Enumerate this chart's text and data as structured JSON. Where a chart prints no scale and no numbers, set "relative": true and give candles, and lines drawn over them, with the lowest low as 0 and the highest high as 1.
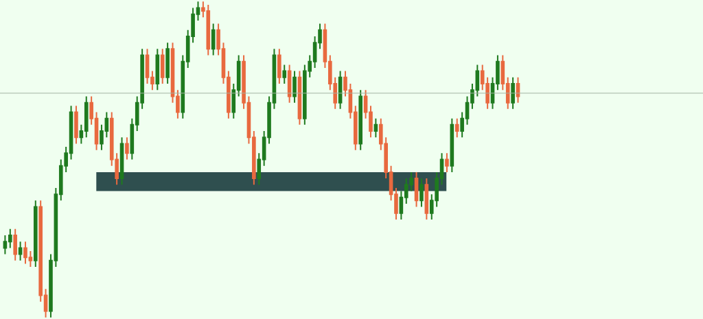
{
  "chart_data": {
    "type": "candlestick",
    "relative": true,
    "legend": false,
    "categories": [
      null,
      null,
      null,
      null,
      null,
      null,
      null,
      null,
      null,
      null,
      null,
      null,
      null,
      null,
      null,
      null,
      null,
      null,
      null,
      null,
      null,
      null,
      null,
      null,
      null,
      null,
      null,
      null,
      null,
      null,
      null,
      null,
      null,
      null,
      null,
      null,
      null,
      null,
      null,
      null,
      null,
      null,
      null,
      null,
      null,
      null,
      null,
      null,
      null,
      null,
      null,
      null,
      null,
      null,
      null,
      null,
      null,
      null,
      null,
      null,
      null,
      null,
      null,
      null,
      null,
      null,
      null,
      null,
      null,
      null,
      null,
      null,
      null,
      null,
      null,
      null,
      null,
      null,
      null,
      null,
      null,
      null,
      null,
      null,
      null,
      null,
      null,
      null,
      null,
      null,
      null,
      null,
      null,
      null,
      null,
      null,
      null,
      null,
      null,
      null,
      null,
      null
    ],
    "ohlc": [
      [
        0.22,
        0.26,
        0.2,
        0.24
      ],
      [
        0.24,
        0.28,
        0.22,
        0.26
      ],
      [
        0.26,
        0.28,
        0.18,
        0.2
      ],
      [
        0.2,
        0.24,
        0.18,
        0.22
      ],
      [
        0.22,
        0.24,
        0.17,
        0.19
      ],
      [
        0.19,
        0.21,
        0.16,
        0.18
      ],
      [
        0.18,
        0.37,
        0.16,
        0.35
      ],
      [
        0.35,
        0.37,
        0.05,
        0.07
      ],
      [
        0.07,
        0.09,
        0,
        0.02
      ],
      [
        0.02,
        0.2,
        0,
        0.18
      ],
      [
        0.18,
        0.41,
        0.16,
        0.39
      ],
      [
        0.39,
        0.5,
        0.37,
        0.48
      ],
      [
        0.48,
        0.54,
        0.46,
        0.52
      ],
      [
        0.52,
        0.67,
        0.5,
        0.65
      ],
      [
        0.65,
        0.67,
        0.55,
        0.57
      ],
      [
        0.57,
        0.61,
        0.55,
        0.59
      ],
      [
        0.59,
        0.7,
        0.57,
        0.68
      ],
      [
        0.68,
        0.7,
        0.61,
        0.63
      ],
      [
        0.63,
        0.65,
        0.53,
        0.55
      ],
      [
        0.55,
        0.61,
        0.53,
        0.59
      ],
      [
        0.59,
        0.65,
        0.57,
        0.63
      ],
      [
        0.63,
        0.65,
        0.48,
        0.5
      ],
      [
        0.5,
        0.52,
        0.42,
        0.44
      ],
      [
        0.44,
        0.57,
        0.42,
        0.55
      ],
      [
        0.55,
        0.57,
        0.5,
        0.52
      ],
      [
        0.52,
        0.63,
        0.5,
        0.61
      ],
      [
        0.61,
        0.7,
        0.59,
        0.68
      ],
      [
        0.68,
        0.85,
        0.66,
        0.83
      ],
      [
        0.83,
        0.85,
        0.74,
        0.76
      ],
      [
        0.76,
        0.78,
        0.72,
        0.74
      ],
      [
        0.74,
        0.85,
        0.72,
        0.83
      ],
      [
        0.83,
        0.85,
        0.74,
        0.76
      ],
      [
        0.76,
        0.87,
        0.74,
        0.85
      ],
      [
        0.85,
        0.87,
        0.68,
        0.7
      ],
      [
        0.7,
        0.72,
        0.63,
        0.65
      ],
      [
        0.65,
        0.83,
        0.63,
        0.81
      ],
      [
        0.81,
        0.91,
        0.79,
        0.89
      ],
      [
        0.89,
        0.98,
        0.87,
        0.96
      ],
      [
        0.96,
        1,
        0.94,
        0.98
      ],
      [
        0.98,
        1,
        0.95,
        0.97
      ],
      [
        0.97,
        0.99,
        0.83,
        0.85
      ],
      [
        0.85,
        0.93,
        0.83,
        0.91
      ],
      [
        0.91,
        0.93,
        0.83,
        0.85
      ],
      [
        0.85,
        0.87,
        0.74,
        0.76
      ],
      [
        0.76,
        0.78,
        0.63,
        0.65
      ],
      [
        0.65,
        0.74,
        0.63,
        0.72
      ],
      [
        0.72,
        0.83,
        0.7,
        0.81
      ],
      [
        0.81,
        0.83,
        0.66,
        0.68
      ],
      [
        0.68,
        0.7,
        0.55,
        0.57
      ],
      [
        0.57,
        0.59,
        0.42,
        0.44
      ],
      [
        0.44,
        0.52,
        0.42,
        0.5
      ],
      [
        0.5,
        0.59,
        0.48,
        0.57
      ],
      [
        0.57,
        0.7,
        0.55,
        0.68
      ],
      [
        0.68,
        0.85,
        0.66,
        0.83
      ],
      [
        0.83,
        0.85,
        0.74,
        0.76
      ],
      [
        0.76,
        0.8,
        0.74,
        0.78
      ],
      [
        0.78,
        0.8,
        0.68,
        0.7
      ],
      [
        0.7,
        0.78,
        0.68,
        0.76
      ],
      [
        0.76,
        0.78,
        0.61,
        0.63
      ],
      [
        0.63,
        0.8,
        0.61,
        0.78
      ],
      [
        0.78,
        0.83,
        0.76,
        0.81
      ],
      [
        0.81,
        0.89,
        0.79,
        0.87
      ],
      [
        0.87,
        0.93,
        0.85,
        0.91
      ],
      [
        0.91,
        0.93,
        0.79,
        0.81
      ],
      [
        0.81,
        0.83,
        0.72,
        0.74
      ],
      [
        0.74,
        0.76,
        0.66,
        0.68
      ],
      [
        0.68,
        0.78,
        0.66,
        0.76
      ],
      [
        0.76,
        0.78,
        0.7,
        0.72
      ],
      [
        0.72,
        0.74,
        0.63,
        0.65
      ],
      [
        0.65,
        0.67,
        0.53,
        0.55
      ],
      [
        0.55,
        0.72,
        0.53,
        0.7
      ],
      [
        0.7,
        0.72,
        0.63,
        0.65
      ],
      [
        0.65,
        0.67,
        0.57,
        0.59
      ],
      [
        0.59,
        0.63,
        0.57,
        0.61
      ],
      [
        0.61,
        0.63,
        0.53,
        0.55
      ],
      [
        0.55,
        0.57,
        0.44,
        0.46
      ],
      [
        0.46,
        0.48,
        0.37,
        0.39
      ],
      [
        0.39,
        0.41,
        0.31,
        0.33
      ],
      [
        0.33,
        0.4,
        0.31,
        0.38
      ],
      [
        0.38,
        0.44,
        0.36,
        0.42
      ],
      [
        0.42,
        0.46,
        0.4,
        0.44
      ],
      [
        0.44,
        0.46,
        0.35,
        0.37
      ],
      [
        0.37,
        0.44,
        0.35,
        0.42
      ],
      [
        0.42,
        0.44,
        0.31,
        0.33
      ],
      [
        0.33,
        0.39,
        0.31,
        0.37
      ],
      [
        0.37,
        0.46,
        0.35,
        0.44
      ],
      [
        0.44,
        0.52,
        0.42,
        0.5
      ],
      [
        0.5,
        0.52,
        0.46,
        0.48
      ],
      [
        0.48,
        0.63,
        0.46,
        0.61
      ],
      [
        0.61,
        0.63,
        0.57,
        0.59
      ],
      [
        0.59,
        0.65,
        0.57,
        0.63
      ],
      [
        0.63,
        0.7,
        0.61,
        0.68
      ],
      [
        0.68,
        0.74,
        0.66,
        0.72
      ],
      [
        0.72,
        0.8,
        0.7,
        0.78
      ],
      [
        0.78,
        0.8,
        0.72,
        0.74
      ],
      [
        0.74,
        0.76,
        0.66,
        0.68
      ],
      [
        0.68,
        0.76,
        0.66,
        0.74
      ],
      [
        0.74,
        0.83,
        0.72,
        0.81
      ],
      [
        0.81,
        0.83,
        0.72,
        0.74
      ],
      [
        0.74,
        0.76,
        0.66,
        0.68
      ],
      [
        0.68,
        0.76,
        0.66,
        0.74
      ],
      [
        0.74,
        0.76,
        0.68,
        0.7
      ]
    ],
    "ref_lines": [
      {
        "axis": "y",
        "value": 0.71,
        "color": "#a3b3a3"
      }
    ],
    "bands": [
      {
        "axis": "y",
        "from": 0.4,
        "to": 0.46,
        "color": "#2f4f4f"
      }
    ]
  }
}
